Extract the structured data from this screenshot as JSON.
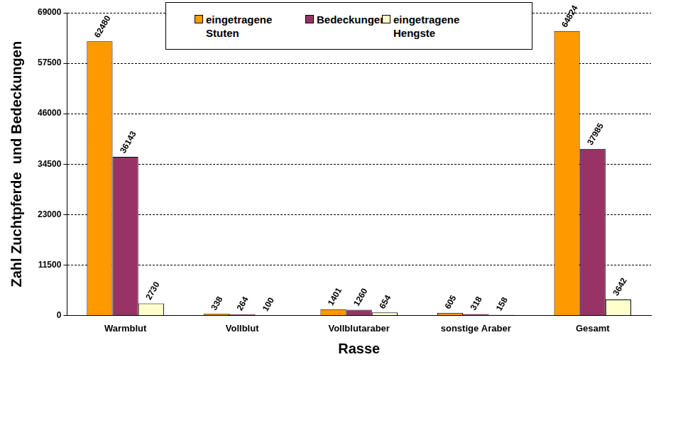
{
  "chart_data": {
    "type": "bar",
    "xlabel": "Rasse",
    "ylabel": "Zahl Zuchtpferde  und Bedeckungen",
    "categories": [
      "Warmblut",
      "Vollblut",
      "Vollblutaraber",
      "sonstige Araber",
      "Gesamt"
    ],
    "series": [
      {
        "name": "eingetragene Stuten",
        "color": "#ff9900",
        "values": [
          62480,
          338,
          1401,
          605,
          64824
        ]
      },
      {
        "name": "Bedeckungen",
        "color": "#993366",
        "values": [
          36143,
          264,
          1260,
          318,
          37985
        ]
      },
      {
        "name": "eingetragene Hengste",
        "color": "#ffffcc",
        "values": [
          2730,
          100,
          654,
          158,
          3642
        ]
      }
    ],
    "ylim": [
      0,
      69000
    ],
    "yticks": [
      0,
      11500,
      23000,
      34500,
      46000,
      57500,
      69000
    ],
    "grid": true,
    "legend": "top",
    "data_labels": true
  }
}
